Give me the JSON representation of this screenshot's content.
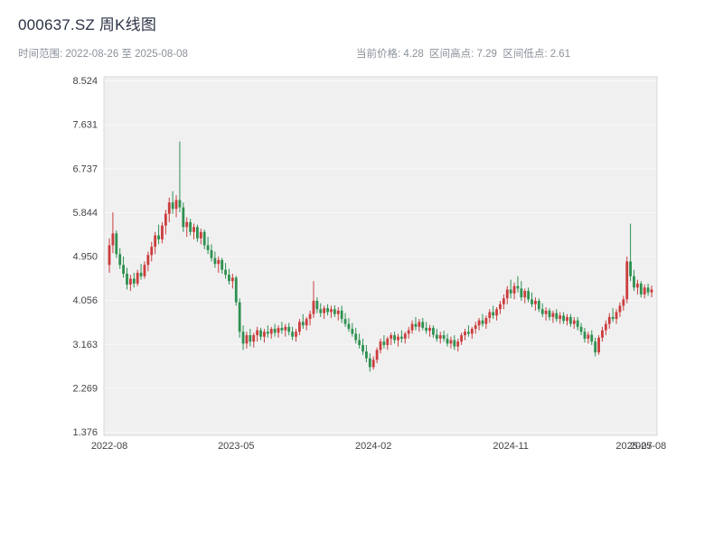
{
  "header": {
    "title": "000637.SZ 周K线图",
    "meta_left": "时间范围: 2022-08-26 至 2025-08-08",
    "meta_right": "当前价格: 4.28  区间高点: 7.29  区间低点: 2.61"
  },
  "chart_data": {
    "type": "candlestick",
    "title": "000637.SZ 周K线图",
    "interval": "weekly",
    "date_start": "2022-08-26",
    "date_end": "2025-08-08",
    "current_price": 4.28,
    "range_high": 7.29,
    "range_low": 2.61,
    "rise_color": "#cb3d3d",
    "fall_color": "#2e9150",
    "plot_bg": "#f0f0f1",
    "plot_border": "#d8d8dc",
    "grid_color": "#ffffff",
    "tick_color": "#424448",
    "y_ticks": [
      "1.376",
      "2.269",
      "3.163",
      "4.056",
      "4.950",
      "5.844",
      "6.737",
      "7.631",
      "8.524"
    ],
    "x_ticks": [
      {
        "index": 0,
        "label": "2022-08"
      },
      {
        "index": 36,
        "label": "2023-05"
      },
      {
        "index": 75,
        "label": "2024-02"
      },
      {
        "index": 114,
        "label": "2024-11"
      },
      {
        "index": 149,
        "label": "2025-07"
      },
      {
        "index": 153,
        "label": "2025-08"
      }
    ],
    "candles_format": [
      "open",
      "high",
      "low",
      "close"
    ],
    "candles": [
      [
        4.78,
        5.32,
        4.62,
        5.18
      ],
      [
        5.18,
        5.85,
        5.02,
        5.42
      ],
      [
        5.42,
        5.48,
        4.92,
        5.0
      ],
      [
        5.0,
        5.12,
        4.7,
        4.78
      ],
      [
        4.78,
        4.95,
        4.52,
        4.6
      ],
      [
        4.6,
        4.72,
        4.28,
        4.38
      ],
      [
        4.38,
        4.58,
        4.25,
        4.5
      ],
      [
        4.5,
        4.62,
        4.32,
        4.4
      ],
      [
        4.4,
        4.68,
        4.35,
        4.62
      ],
      [
        4.62,
        4.8,
        4.48,
        4.55
      ],
      [
        4.55,
        4.85,
        4.5,
        4.78
      ],
      [
        4.78,
        5.05,
        4.65,
        4.98
      ],
      [
        4.98,
        5.25,
        4.85,
        5.15
      ],
      [
        5.15,
        5.45,
        5.0,
        5.38
      ],
      [
        5.38,
        5.6,
        5.2,
        5.3
      ],
      [
        5.3,
        5.65,
        5.22,
        5.58
      ],
      [
        5.58,
        5.9,
        5.4,
        5.82
      ],
      [
        5.82,
        6.15,
        5.65,
        6.05
      ],
      [
        6.05,
        6.28,
        5.82,
        5.92
      ],
      [
        5.92,
        6.2,
        5.75,
        6.1
      ],
      [
        6.1,
        7.29,
        5.85,
        5.95
      ],
      [
        5.95,
        6.05,
        5.45,
        5.55
      ],
      [
        5.55,
        5.75,
        5.35,
        5.65
      ],
      [
        5.65,
        5.72,
        5.38,
        5.45
      ],
      [
        5.45,
        5.62,
        5.3,
        5.55
      ],
      [
        5.55,
        5.6,
        5.25,
        5.32
      ],
      [
        5.32,
        5.52,
        5.2,
        5.45
      ],
      [
        5.45,
        5.5,
        5.1,
        5.18
      ],
      [
        5.18,
        5.35,
        5.0,
        5.08
      ],
      [
        5.08,
        5.2,
        4.85,
        4.92
      ],
      [
        4.92,
        5.05,
        4.72,
        4.8
      ],
      [
        4.8,
        4.95,
        4.62,
        4.88
      ],
      [
        4.88,
        4.92,
        4.6,
        4.68
      ],
      [
        4.68,
        4.82,
        4.5,
        4.58
      ],
      [
        4.58,
        4.7,
        4.38,
        4.45
      ],
      [
        4.45,
        4.6,
        4.3,
        4.52
      ],
      [
        4.52,
        4.56,
        3.95,
        4.02
      ],
      [
        4.02,
        4.1,
        3.3,
        3.42
      ],
      [
        3.42,
        3.55,
        3.05,
        3.18
      ],
      [
        3.18,
        3.42,
        3.08,
        3.35
      ],
      [
        3.35,
        3.48,
        3.12,
        3.22
      ],
      [
        3.22,
        3.4,
        3.1,
        3.35
      ],
      [
        3.35,
        3.52,
        3.22,
        3.45
      ],
      [
        3.45,
        3.5,
        3.25,
        3.32
      ],
      [
        3.32,
        3.48,
        3.2,
        3.42
      ],
      [
        3.42,
        3.55,
        3.3,
        3.38
      ],
      [
        3.38,
        3.52,
        3.28,
        3.48
      ],
      [
        3.48,
        3.58,
        3.32,
        3.4
      ],
      [
        3.4,
        3.55,
        3.3,
        3.5
      ],
      [
        3.5,
        3.62,
        3.38,
        3.45
      ],
      [
        3.45,
        3.58,
        3.32,
        3.52
      ],
      [
        3.52,
        3.6,
        3.35,
        3.42
      ],
      [
        3.42,
        3.52,
        3.25,
        3.32
      ],
      [
        3.32,
        3.48,
        3.22,
        3.42
      ],
      [
        3.42,
        3.68,
        3.35,
        3.62
      ],
      [
        3.62,
        3.78,
        3.48,
        3.55
      ],
      [
        3.55,
        3.72,
        3.45,
        3.68
      ],
      [
        3.68,
        3.85,
        3.55,
        3.78
      ],
      [
        3.78,
        4.45,
        3.7,
        4.05
      ],
      [
        4.05,
        4.12,
        3.8,
        3.88
      ],
      [
        3.88,
        4.0,
        3.72,
        3.8
      ],
      [
        3.8,
        3.95,
        3.68,
        3.9
      ],
      [
        3.9,
        3.98,
        3.75,
        3.82
      ],
      [
        3.82,
        3.95,
        3.7,
        3.88
      ],
      [
        3.88,
        3.96,
        3.72,
        3.78
      ],
      [
        3.78,
        3.92,
        3.65,
        3.85
      ],
      [
        3.85,
        3.95,
        3.6,
        3.68
      ],
      [
        3.68,
        3.8,
        3.52,
        3.58
      ],
      [
        3.58,
        3.7,
        3.42,
        3.48
      ],
      [
        3.48,
        3.6,
        3.32,
        3.38
      ],
      [
        3.38,
        3.5,
        3.18,
        3.25
      ],
      [
        3.25,
        3.38,
        3.08,
        3.15
      ],
      [
        3.15,
        3.28,
        2.95,
        3.02
      ],
      [
        3.02,
        3.15,
        2.8,
        2.88
      ],
      [
        2.88,
        2.98,
        2.61,
        2.7
      ],
      [
        2.7,
        2.92,
        2.65,
        2.85
      ],
      [
        2.85,
        3.1,
        2.78,
        3.05
      ],
      [
        3.05,
        3.28,
        2.98,
        3.22
      ],
      [
        3.22,
        3.35,
        3.08,
        3.15
      ],
      [
        3.15,
        3.32,
        3.05,
        3.28
      ],
      [
        3.28,
        3.4,
        3.15,
        3.35
      ],
      [
        3.35,
        3.42,
        3.18,
        3.25
      ],
      [
        3.25,
        3.38,
        3.12,
        3.32
      ],
      [
        3.32,
        3.45,
        3.2,
        3.28
      ],
      [
        3.28,
        3.42,
        3.18,
        3.38
      ],
      [
        3.38,
        3.52,
        3.28,
        3.45
      ],
      [
        3.45,
        3.65,
        3.38,
        3.58
      ],
      [
        3.58,
        3.72,
        3.45,
        3.52
      ],
      [
        3.52,
        3.68,
        3.42,
        3.62
      ],
      [
        3.62,
        3.7,
        3.45,
        3.5
      ],
      [
        3.5,
        3.62,
        3.38,
        3.44
      ],
      [
        3.44,
        3.56,
        3.32,
        3.5
      ],
      [
        3.5,
        3.55,
        3.3,
        3.36
      ],
      [
        3.36,
        3.48,
        3.22,
        3.28
      ],
      [
        3.28,
        3.42,
        3.18,
        3.35
      ],
      [
        3.35,
        3.44,
        3.22,
        3.28
      ],
      [
        3.28,
        3.38,
        3.12,
        3.18
      ],
      [
        3.18,
        3.32,
        3.08,
        3.25
      ],
      [
        3.25,
        3.35,
        3.05,
        3.12
      ],
      [
        3.12,
        3.28,
        3.02,
        3.22
      ],
      [
        3.22,
        3.4,
        3.15,
        3.35
      ],
      [
        3.35,
        3.48,
        3.25,
        3.42
      ],
      [
        3.42,
        3.55,
        3.32,
        3.38
      ],
      [
        3.38,
        3.52,
        3.28,
        3.48
      ],
      [
        3.48,
        3.62,
        3.38,
        3.55
      ],
      [
        3.55,
        3.7,
        3.45,
        3.65
      ],
      [
        3.65,
        3.78,
        3.52,
        3.58
      ],
      [
        3.58,
        3.75,
        3.48,
        3.7
      ],
      [
        3.7,
        3.88,
        3.6,
        3.82
      ],
      [
        3.82,
        3.95,
        3.68,
        3.75
      ],
      [
        3.75,
        3.92,
        3.65,
        3.88
      ],
      [
        3.88,
        4.05,
        3.78,
        3.98
      ],
      [
        3.98,
        4.18,
        3.88,
        4.1
      ],
      [
        4.1,
        4.35,
        3.98,
        4.28
      ],
      [
        4.28,
        4.48,
        4.1,
        4.2
      ],
      [
        4.2,
        4.42,
        4.08,
        4.35
      ],
      [
        4.35,
        4.55,
        4.22,
        4.3
      ],
      [
        4.3,
        4.45,
        4.05,
        4.12
      ],
      [
        4.12,
        4.3,
        4.0,
        4.25
      ],
      [
        4.25,
        4.32,
        4.02,
        4.08
      ],
      [
        4.08,
        4.22,
        3.92,
        3.98
      ],
      [
        3.98,
        4.12,
        3.85,
        4.05
      ],
      [
        4.05,
        4.1,
        3.82,
        3.88
      ],
      [
        3.88,
        4.0,
        3.72,
        3.78
      ],
      [
        3.78,
        3.92,
        3.65,
        3.85
      ],
      [
        3.85,
        3.9,
        3.65,
        3.72
      ],
      [
        3.72,
        3.85,
        3.6,
        3.8
      ],
      [
        3.8,
        3.88,
        3.62,
        3.68
      ],
      [
        3.68,
        3.82,
        3.58,
        3.75
      ],
      [
        3.75,
        3.82,
        3.58,
        3.64
      ],
      [
        3.64,
        3.78,
        3.55,
        3.72
      ],
      [
        3.72,
        3.78,
        3.52,
        3.58
      ],
      [
        3.58,
        3.72,
        3.48,
        3.65
      ],
      [
        3.65,
        3.72,
        3.45,
        3.52
      ],
      [
        3.52,
        3.6,
        3.35,
        3.42
      ],
      [
        3.42,
        3.5,
        3.2,
        3.28
      ],
      [
        3.28,
        3.42,
        3.18,
        3.36
      ],
      [
        3.36,
        3.45,
        3.15,
        3.22
      ],
      [
        3.22,
        3.3,
        2.92,
        3.0
      ],
      [
        3.0,
        3.35,
        2.95,
        3.3
      ],
      [
        3.3,
        3.52,
        3.22,
        3.45
      ],
      [
        3.45,
        3.65,
        3.35,
        3.58
      ],
      [
        3.58,
        3.8,
        3.48,
        3.72
      ],
      [
        3.72,
        3.9,
        3.62,
        3.68
      ],
      [
        3.68,
        3.88,
        3.58,
        3.82
      ],
      [
        3.82,
        4.02,
        3.72,
        3.95
      ],
      [
        3.95,
        4.15,
        3.85,
        4.08
      ],
      [
        4.08,
        4.95,
        4.0,
        4.85
      ],
      [
        4.85,
        5.62,
        4.45,
        4.55
      ],
      [
        4.55,
        4.68,
        4.25,
        4.32
      ],
      [
        4.32,
        4.48,
        4.18,
        4.4
      ],
      [
        4.4,
        4.45,
        4.12,
        4.18
      ],
      [
        4.18,
        4.38,
        4.1,
        4.32
      ],
      [
        4.32,
        4.4,
        4.15,
        4.22
      ],
      [
        4.22,
        4.36,
        4.12,
        4.28
      ]
    ]
  }
}
